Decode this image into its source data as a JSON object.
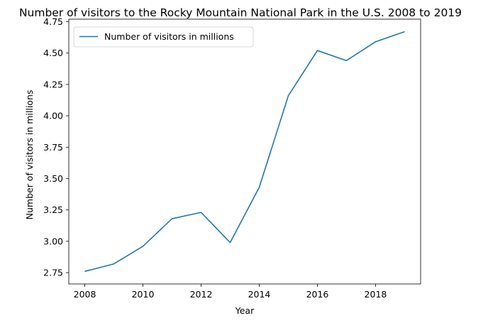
{
  "chart_data": {
    "type": "line",
    "title": "Number of visitors to the Rocky Mountain National Park in the U.S. 2008 to 2019",
    "xlabel": "Year",
    "ylabel": "Number of visitors in millions",
    "xlim": [
      2007.45,
      2019.55
    ],
    "ylim": [
      2.66,
      4.77
    ],
    "x_ticks": [
      2008,
      2010,
      2012,
      2014,
      2016,
      2018
    ],
    "y_ticks": [
      "2.75",
      "3.00",
      "3.25",
      "3.50",
      "3.75",
      "4.00",
      "4.25",
      "4.50",
      "4.75"
    ],
    "grid": false,
    "legend_position": "upper-left",
    "series": [
      {
        "name": "Number of visitors in millions",
        "color": "#1f77b4",
        "x": [
          2008,
          2009,
          2010,
          2011,
          2012,
          2013,
          2014,
          2015,
          2016,
          2017,
          2018,
          2019
        ],
        "y": [
          2.76,
          2.82,
          2.96,
          3.18,
          3.23,
          2.99,
          3.43,
          4.16,
          4.52,
          4.44,
          4.59,
          4.67
        ]
      }
    ]
  }
}
